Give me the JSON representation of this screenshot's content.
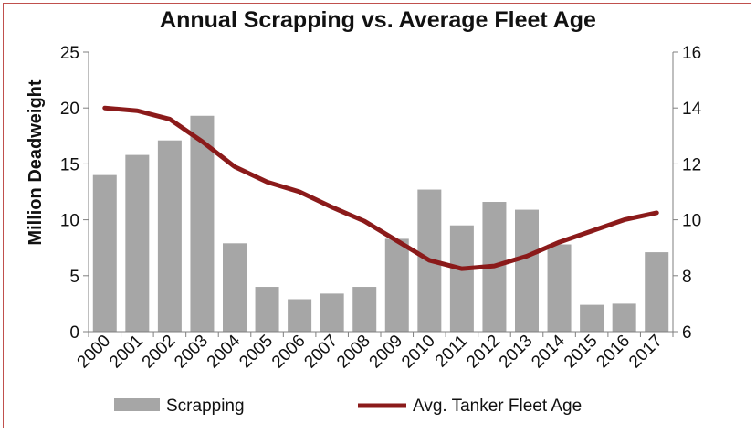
{
  "chart_data": {
    "type": "bar",
    "title": "Annual Scrapping vs. Average Fleet Age",
    "ylabel": "Million Deadweight",
    "y2label": "",
    "ylim": [
      0,
      25
    ],
    "y_ticks": [
      "0",
      "5",
      "10",
      "15",
      "20",
      "25"
    ],
    "y2lim": [
      6,
      16
    ],
    "y2_ticks": [
      "6",
      "8",
      "10",
      "12",
      "14",
      "16"
    ],
    "categories": [
      "2000",
      "2001",
      "2002",
      "2003",
      "2004",
      "2005",
      "2006",
      "2007",
      "2008",
      "2009",
      "2010",
      "2011",
      "2012",
      "2013",
      "2014",
      "2015",
      "2016",
      "2017"
    ],
    "series": [
      {
        "name": "Scrapping",
        "type": "bar",
        "axis": "left",
        "color": "#a6a6a6",
        "values": [
          14.0,
          15.8,
          17.1,
          19.3,
          7.9,
          4.0,
          2.9,
          3.4,
          4.0,
          8.3,
          12.7,
          9.5,
          11.6,
          10.9,
          7.8,
          2.4,
          2.5,
          7.1
        ]
      },
      {
        "name": "Avg. Tanker Fleet Age",
        "type": "line",
        "axis": "right",
        "color": "#8b1a1a",
        "values": [
          14.0,
          13.9,
          13.6,
          12.8,
          11.9,
          11.35,
          11.0,
          10.45,
          9.95,
          9.25,
          8.55,
          8.25,
          8.35,
          8.7,
          9.2,
          9.6,
          10.0,
          10.25
        ]
      }
    ],
    "grid": false,
    "legend": "bottom"
  }
}
